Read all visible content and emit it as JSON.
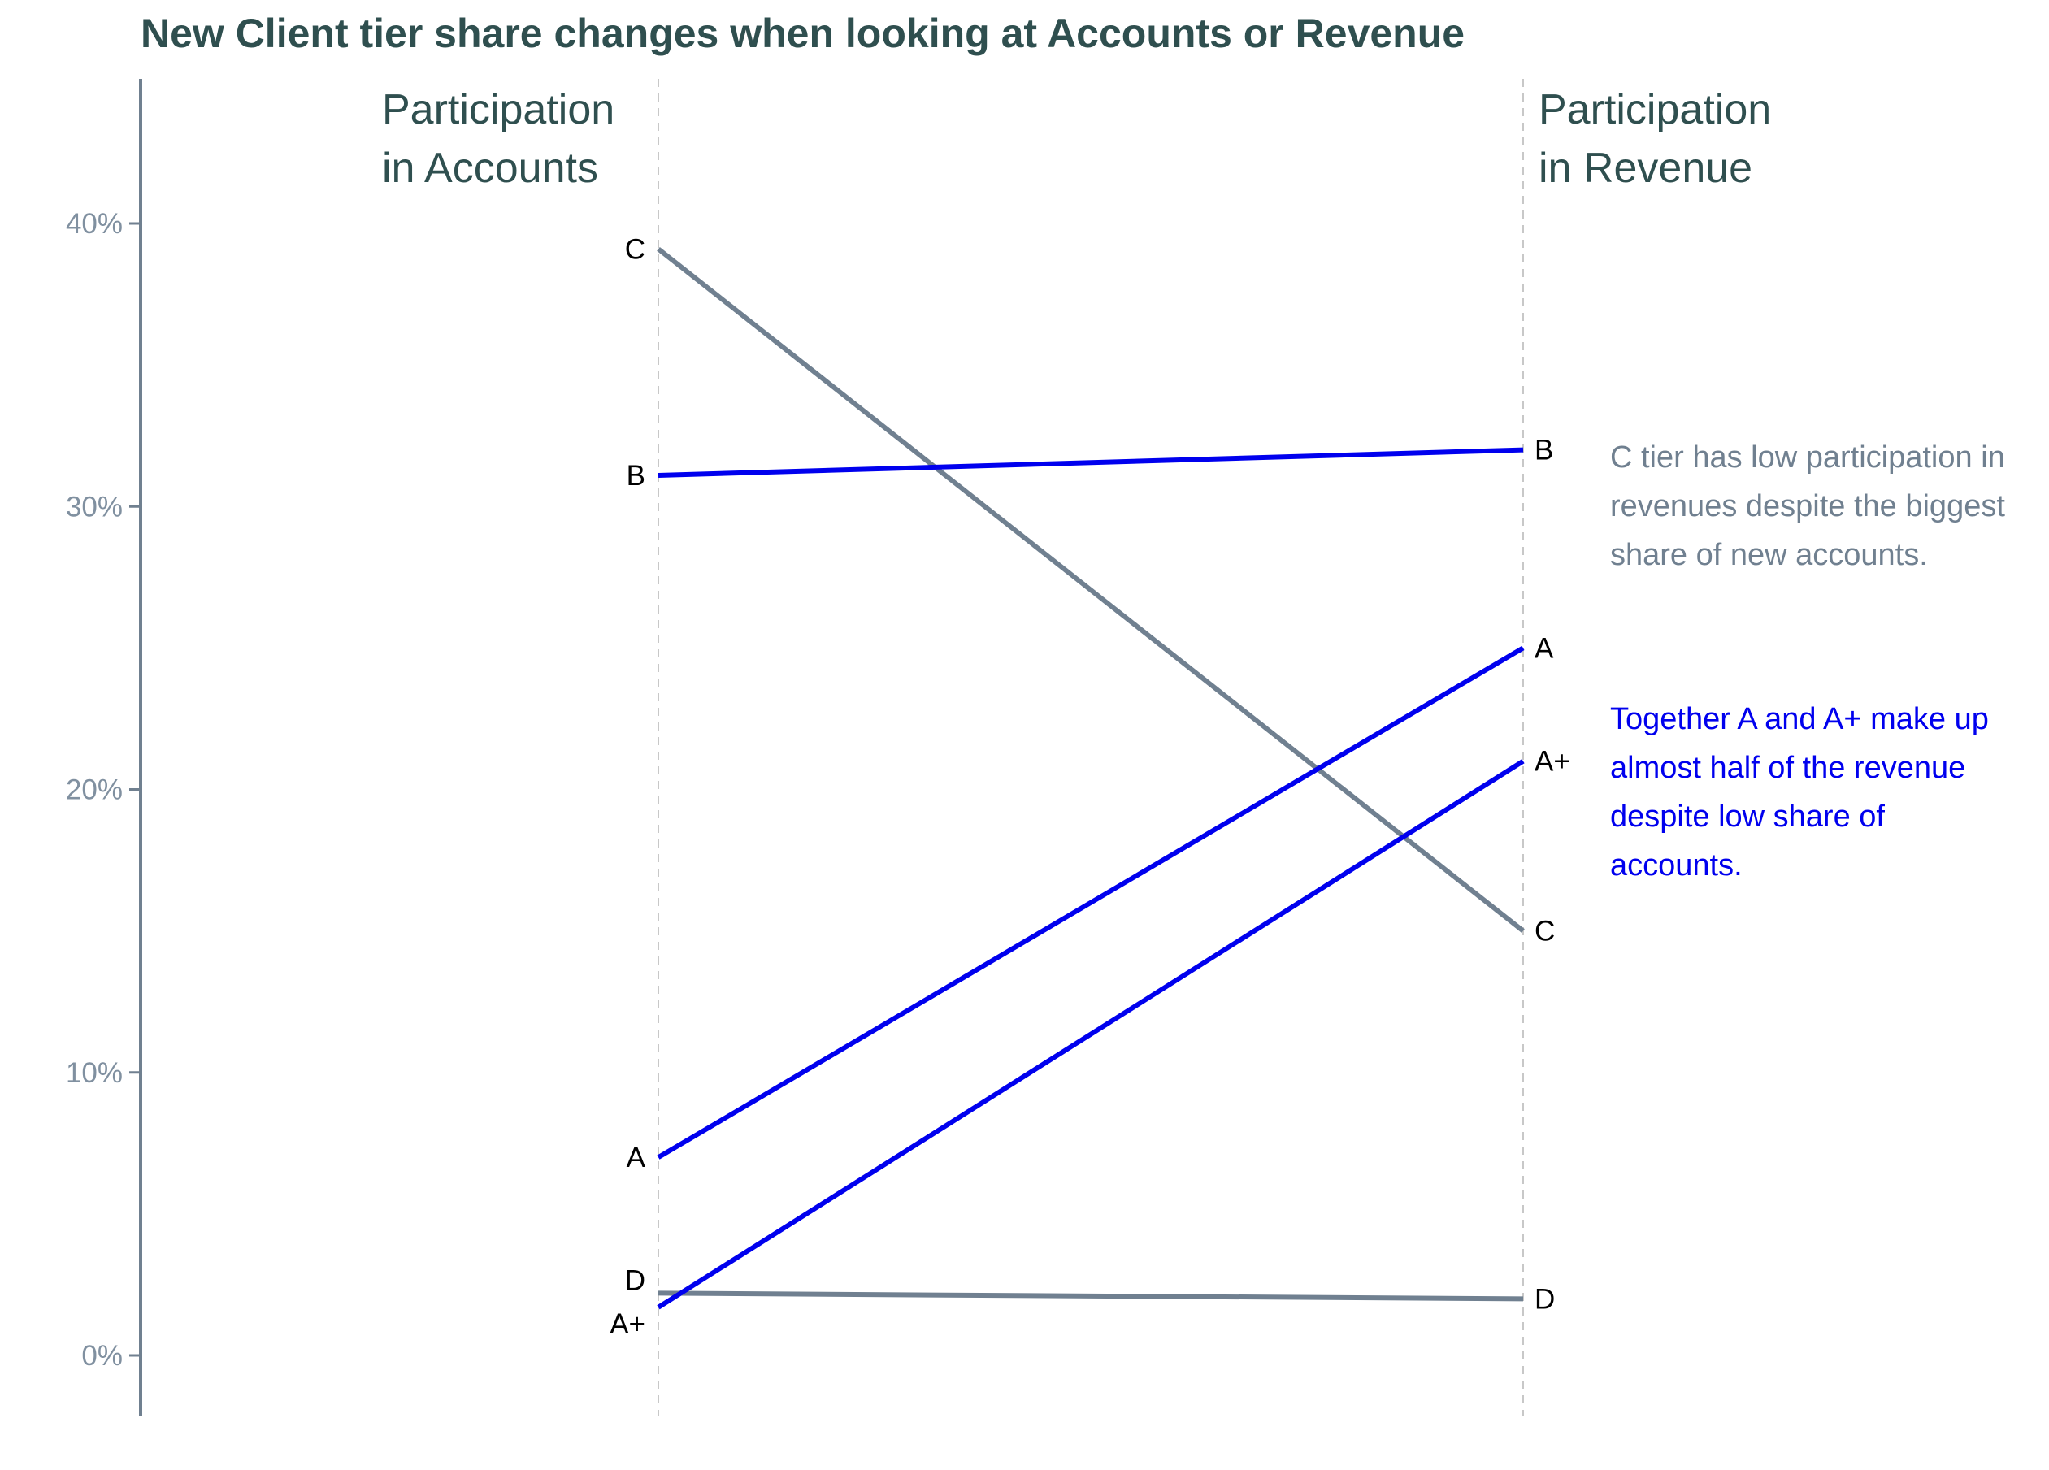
{
  "chart_data": {
    "type": "line",
    "title": "New Client tier share changes when looking at Accounts or Revenue",
    "columns": [
      {
        "id": "accounts",
        "header": [
          "Participation",
          "in Accounts"
        ]
      },
      {
        "id": "revenue",
        "header": [
          "Participation",
          "in Revenue"
        ]
      }
    ],
    "ylim": [
      -0.02,
      0.45
    ],
    "yticks": [
      0,
      0.1,
      0.2,
      0.3,
      0.4
    ],
    "ytick_labels": [
      "0%",
      "10%",
      "20%",
      "30%",
      "40%"
    ],
    "grid": false,
    "series": [
      {
        "name": "C",
        "values": [
          0.391,
          0.15
        ],
        "color": "#708090"
      },
      {
        "name": "B",
        "values": [
          0.311,
          0.32
        ],
        "color": "#0000EE"
      },
      {
        "name": "A",
        "values": [
          0.07,
          0.25
        ],
        "color": "#0000EE"
      },
      {
        "name": "D",
        "values": [
          0.022,
          0.02
        ],
        "color": "#708090"
      },
      {
        "name": "A+",
        "values": [
          0.017,
          0.21
        ],
        "color": "#0000EE"
      }
    ],
    "annotations": [
      {
        "lines": [
          "C tier has low participation in",
          "revenues despite the biggest",
          "share of new accounts."
        ],
        "color": "#708090"
      },
      {
        "lines": [
          "Together A and A+ make up",
          "almost half of the revenue",
          "despite low share of",
          "accounts."
        ],
        "color": "#0000EE"
      }
    ]
  },
  "colors": {
    "title": "#2F4F4F",
    "header": "#2F4F4F",
    "axis": "#708090",
    "tick_text": "#8090A0",
    "guide": "#C8C8C8",
    "label_text": "#000000"
  }
}
